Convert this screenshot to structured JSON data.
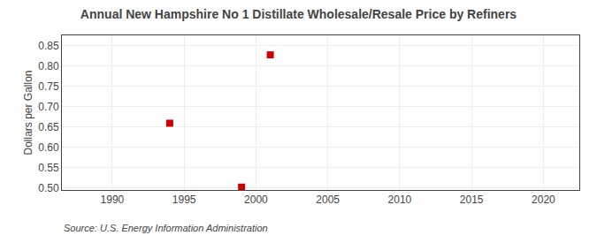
{
  "chart_data": {
    "type": "scatter",
    "title": "Annual New Hampshire No 1 Distillate Wholesale/Resale Price by Refiners",
    "y_label": "Dollars per Gallon",
    "annotations": [
      "Source: U.S. Energy Information Administration"
    ],
    "x": [
      1994,
      1999,
      2001
    ],
    "values": [
      0.659,
      0.502,
      0.827
    ],
    "color": "#cc0000",
    "marker": "square",
    "xlim": [
      1986.5,
      2022.5
    ],
    "xticks": [
      1990,
      1995,
      2000,
      2005,
      2010,
      2015,
      2020
    ],
    "ylim": [
      0.495,
      0.875
    ],
    "yticks": [
      {
        "value": 0.5,
        "label": "0.50"
      },
      0.55,
      {
        "value": 0.6,
        "label": "0.60"
      },
      0.65,
      {
        "value": 0.7,
        "label": "0.70"
      },
      0.75,
      {
        "value": 0.8,
        "label": "0.80"
      },
      0.85
    ],
    "grid": true
  }
}
